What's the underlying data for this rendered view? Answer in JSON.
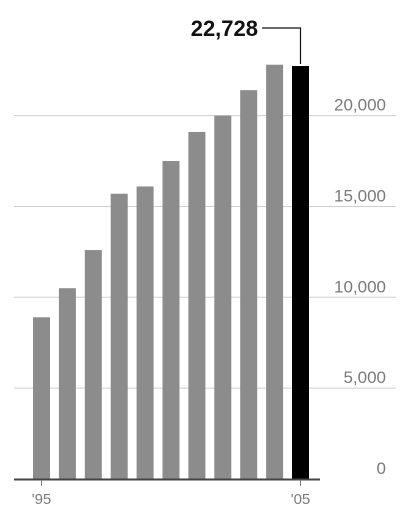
{
  "chart_data": {
    "type": "bar",
    "categories": [
      "1995",
      "1996",
      "1997",
      "1998",
      "1999",
      "2000",
      "2001",
      "2002",
      "2003",
      "2004",
      "2005"
    ],
    "values": [
      8900,
      10500,
      12600,
      15700,
      16100,
      17500,
      19100,
      20000,
      21400,
      22800,
      22728
    ],
    "x_tick_labels": [
      {
        "category": "1995",
        "label": "'95"
      },
      {
        "category": "2005",
        "label": "'05"
      }
    ],
    "y_ticks": [
      0,
      5000,
      10000,
      15000,
      20000
    ],
    "y_tick_labels": [
      "0",
      "5,000",
      "10,000",
      "15,000",
      "20,000"
    ],
    "ylim": [
      0,
      26000
    ],
    "grid": true,
    "highlight": {
      "category": "2005",
      "label": "22,728",
      "color": "#000000"
    },
    "bar_color": "#8c8c8c",
    "title": "",
    "xlabel": "",
    "ylabel": ""
  }
}
